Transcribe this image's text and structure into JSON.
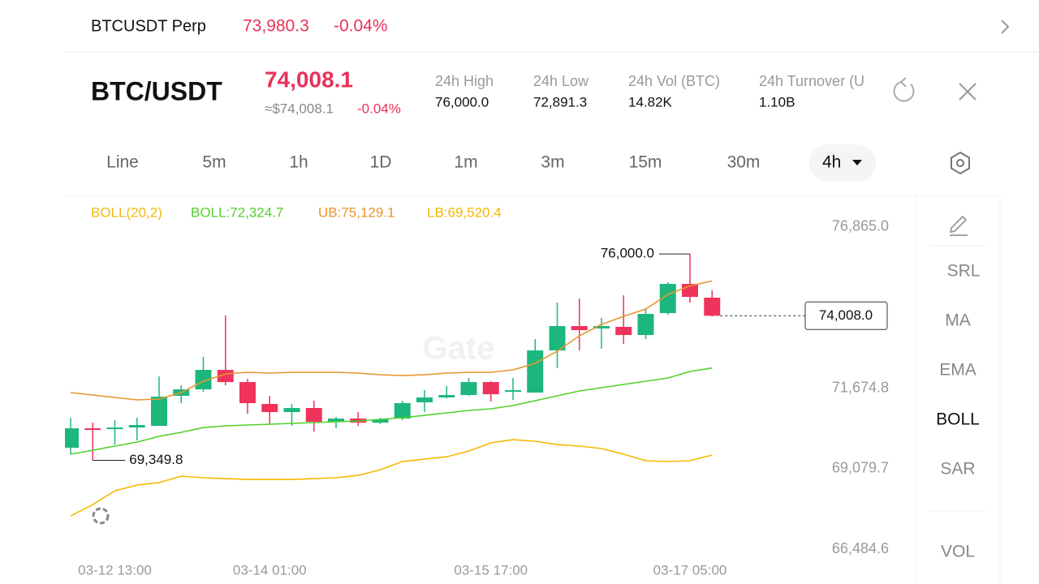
{
  "top_bar": {
    "symbol": "BTCUSDT Perp",
    "price": "73,980.3",
    "change": "-0.04%"
  },
  "header": {
    "pair": "BTC/USDT",
    "price": "74,008.1",
    "approx": "≈$74,008.1",
    "change": "-0.04%",
    "stats": [
      {
        "label": "24h  High",
        "value": "76,000.0"
      },
      {
        "label": "24h  Low",
        "value": "72,891.3"
      },
      {
        "label": "24h  Vol (BTC)",
        "value": "14.82K"
      },
      {
        "label": "24h  Turnover (U",
        "value": "1.10B"
      }
    ]
  },
  "timeframes": [
    "Line",
    "5m",
    "1h",
    "1D",
    "1m",
    "3m",
    "15m",
    "30m",
    "4h"
  ],
  "indicators": [
    "SRL",
    "MA",
    "EMA",
    "BOLL",
    "SAR",
    "VOL"
  ],
  "watermark": "Gate",
  "chart_data": {
    "type": "candlestick",
    "indicator_label": "BOLL(20,2)",
    "up_color": "#1db77d",
    "down_color": "#f0335c",
    "categories": [
      null,
      null,
      "03-12 13:00",
      null,
      null,
      null,
      null,
      null,
      null,
      "03-14 01:00",
      null,
      null,
      null,
      null,
      null,
      null,
      null,
      null,
      null,
      "03-15 17:00",
      null,
      null,
      null,
      null,
      null,
      null,
      null,
      null,
      "03-17 05:00",
      null
    ],
    "open": [
      69755,
      70382,
      70356,
      70408,
      70461,
      71428,
      71637,
      72264,
      71872,
      71167,
      70905,
      71036,
      70592,
      70696,
      70565,
      70696,
      71219,
      71376,
      71454,
      71872,
      71559,
      71533,
      72892,
      73676,
      73598,
      73650,
      73388,
      74094,
      75035,
      74591
    ],
    "high": [
      70722,
      70565,
      70644,
      70722,
      72055,
      71768,
      72683,
      74016,
      71977,
      71428,
      71167,
      71271,
      70748,
      70905,
      70722,
      71271,
      71611,
      71742,
      72003,
      71898,
      72003,
      73258,
      74434,
      74565,
      73937,
      74669,
      74251,
      75087,
      76000,
      74826
    ],
    "low": [
      69546,
      69349.8,
      69859,
      69990,
      70461,
      71193,
      71559,
      71768,
      70853,
      70539,
      70461,
      70278,
      70382,
      70461,
      70513,
      70644,
      70905,
      71350,
      71428,
      71245,
      71297,
      71533,
      72316,
      72892,
      72944,
      73101,
      73258,
      74042,
      74434,
      73980
    ],
    "close": [
      70382,
      70356,
      70408,
      70487,
      71402,
      71637,
      72264,
      71872,
      71193,
      70905,
      71036,
      70592,
      70696,
      70565,
      70670,
      71193,
      71376,
      71454,
      71872,
      71480,
      71611,
      72892,
      73676,
      73545,
      73676,
      73388,
      74068,
      75035,
      74617,
      74008
    ],
    "series": [
      {
        "name": "BOLL:72,324.7",
        "color": "#52d12b",
        "values": [
          69546,
          69676,
          69807,
          69938,
          70121,
          70252,
          70408,
          70461,
          70487,
          70513,
          70539,
          70565,
          70592,
          70618,
          70670,
          70722,
          70800,
          70879,
          70957,
          71010,
          71114,
          71271,
          71428,
          71585,
          71689,
          71794,
          71898,
          72003,
          72212,
          72324.7
        ]
      },
      {
        "name": "UB:75,129.1",
        "color": "#e8962e",
        "values": [
          71532,
          71454,
          71376,
          71297,
          71323,
          71532,
          71898,
          72134,
          72186,
          72160,
          72186,
          72186,
          72186,
          72160,
          72108,
          72081,
          72108,
          72160,
          72186,
          72186,
          72264,
          72473,
          72866,
          73362,
          73728,
          73990,
          74225,
          74695,
          74970,
          75129.1
        ]
      },
      {
        "name": "LB:69,520.4",
        "color": "#f5b800",
        "values": [
          67559,
          67925,
          68369,
          68552,
          68631,
          68840,
          68788,
          68761,
          68735,
          68735,
          68735,
          68761,
          68788,
          68866,
          69049,
          69311,
          69389,
          69467,
          69650,
          69912,
          70016,
          69964,
          69859,
          69807,
          69729,
          69546,
          69337,
          69311,
          69337,
          69520.4
        ]
      }
    ],
    "ylim": [
      65888,
      77858
    ],
    "yticks": [
      {
        "value": 76865,
        "label": "76,865.0"
      },
      {
        "value": 71674.8,
        "label": "71,674.8"
      },
      {
        "value": 69079.7,
        "label": "69,079.7"
      },
      {
        "value": 66484.6,
        "label": "66,484.6"
      }
    ],
    "annotations": [
      {
        "value": 76000,
        "label": "76,000.0"
      },
      {
        "value": 69349.8,
        "label": "69,349.8"
      }
    ],
    "price_marker": {
      "value": 74008,
      "label": "74,008.0"
    }
  }
}
